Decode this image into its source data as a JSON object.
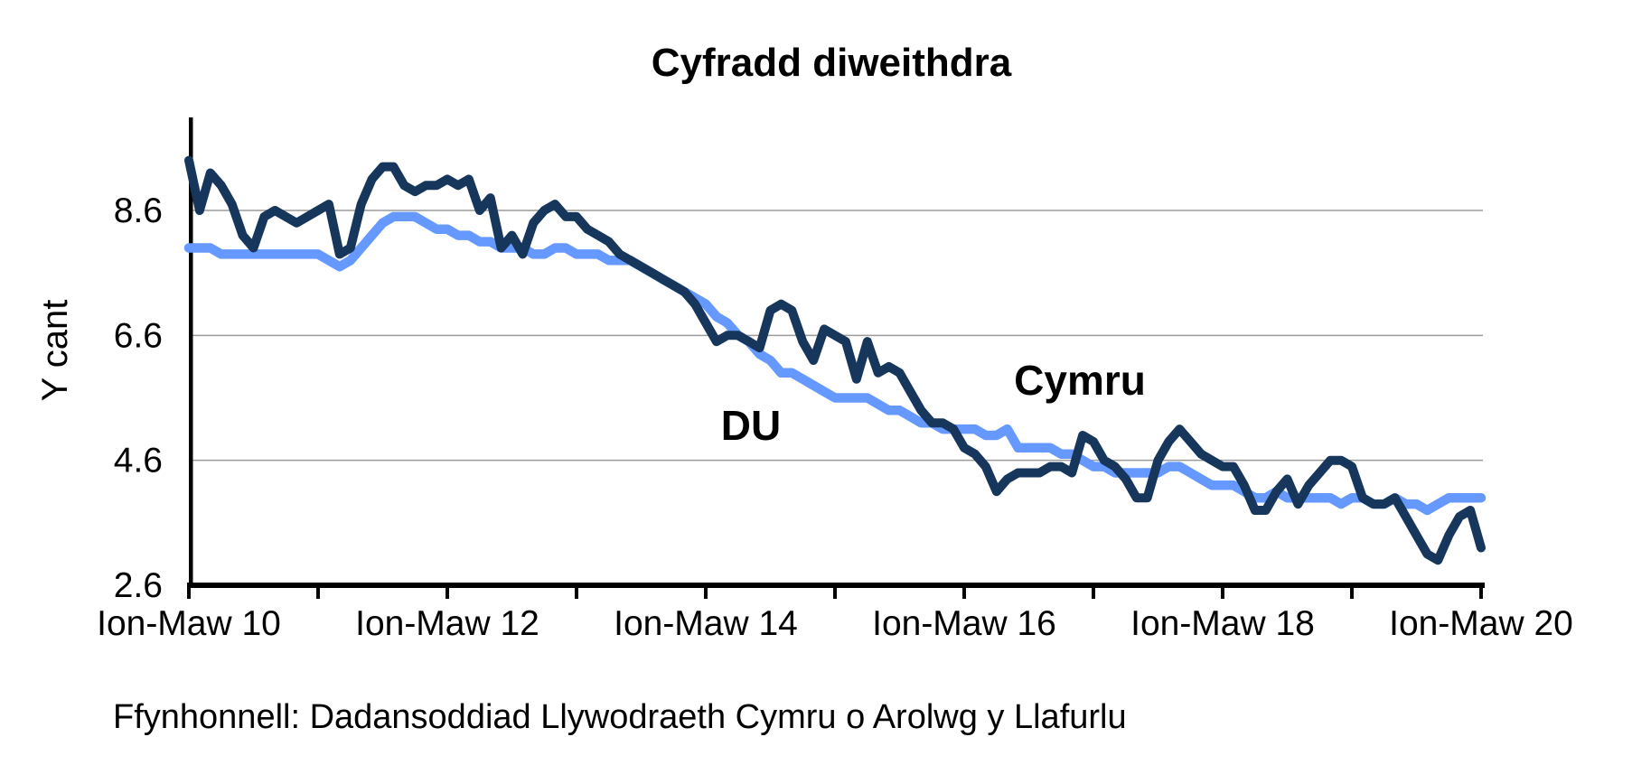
{
  "title": "Cyfradd diweithdra",
  "y_axis": {
    "label": "Y cant"
  },
  "series_labels": {
    "cymru": "Cymru",
    "du": "DU"
  },
  "source": "Ffynhonnell: Dadansoddiad Llywodraeth Cymru o Arolwg y Llafurlu",
  "colors": {
    "cymru": "#16365C",
    "du": "#6699FF",
    "gridline": "#9B9B9B",
    "axis": "#000000"
  },
  "chart_data": {
    "type": "line",
    "title": "Cyfradd diweithdra",
    "ylabel": "Y cant",
    "ylim": [
      2.6,
      10.0
    ],
    "yticks": [
      2.6,
      4.6,
      6.6,
      8.6
    ],
    "grid": "horizontal",
    "legend_position": "inline-annotations",
    "x_unit": "rolling-quarter-monthly",
    "x_range": [
      "Ion-Maw 2010",
      "Ion-Maw 2020"
    ],
    "x_tick_labels": [
      "Ion-Maw 10",
      "Ion-Maw 12",
      "Ion-Maw 14",
      "Ion-Maw 16",
      "Ion-Maw 18",
      "Ion-Maw 20"
    ],
    "series": [
      {
        "name": "DU",
        "color": "#6699FF",
        "values": [
          8.0,
          8.0,
          8.0,
          7.9,
          7.9,
          7.9,
          7.9,
          7.9,
          7.9,
          7.9,
          7.9,
          7.9,
          7.9,
          7.8,
          7.7,
          7.8,
          8.0,
          8.2,
          8.4,
          8.5,
          8.5,
          8.5,
          8.4,
          8.3,
          8.3,
          8.2,
          8.2,
          8.1,
          8.1,
          8.0,
          8.0,
          8.0,
          7.9,
          7.9,
          8.0,
          8.0,
          7.9,
          7.9,
          7.9,
          7.8,
          7.8,
          7.8,
          7.7,
          7.6,
          7.5,
          7.4,
          7.3,
          7.2,
          7.1,
          6.9,
          6.8,
          6.6,
          6.5,
          6.3,
          6.2,
          6.0,
          6.0,
          5.9,
          5.8,
          5.7,
          5.6,
          5.6,
          5.6,
          5.6,
          5.5,
          5.4,
          5.4,
          5.3,
          5.2,
          5.2,
          5.1,
          5.1,
          5.1,
          5.1,
          5.0,
          5.0,
          5.1,
          4.8,
          4.8,
          4.8,
          4.8,
          4.7,
          4.7,
          4.6,
          4.5,
          4.5,
          4.4,
          4.4,
          4.4,
          4.4,
          4.4,
          4.5,
          4.5,
          4.4,
          4.3,
          4.2,
          4.2,
          4.2,
          4.1,
          4.0,
          4.0,
          4.1,
          4.0,
          4.0,
          4.0,
          4.0,
          4.0,
          3.9,
          4.0,
          4.0,
          3.9,
          3.9,
          4.0,
          3.9,
          3.9,
          3.8,
          3.9,
          4.0,
          4.0,
          4.0,
          4.0
        ]
      },
      {
        "name": "Cymru",
        "color": "#16365C",
        "values": [
          9.4,
          8.6,
          9.2,
          9.0,
          8.7,
          8.2,
          8.0,
          8.5,
          8.6,
          8.5,
          8.4,
          8.5,
          8.6,
          8.7,
          7.9,
          8.0,
          8.7,
          9.1,
          9.3,
          9.3,
          9.0,
          8.9,
          9.0,
          9.0,
          9.1,
          9.0,
          9.1,
          8.6,
          8.8,
          8.0,
          8.2,
          7.9,
          8.4,
          8.6,
          8.7,
          8.5,
          8.5,
          8.3,
          8.2,
          8.1,
          7.9,
          7.8,
          7.7,
          7.6,
          7.5,
          7.4,
          7.3,
          7.1,
          6.8,
          6.5,
          6.6,
          6.6,
          6.5,
          6.4,
          7.0,
          7.1,
          7.0,
          6.5,
          6.2,
          6.7,
          6.6,
          6.5,
          5.9,
          6.5,
          6.0,
          6.1,
          6.0,
          5.7,
          5.4,
          5.2,
          5.2,
          5.1,
          4.8,
          4.7,
          4.5,
          4.1,
          4.3,
          4.4,
          4.4,
          4.4,
          4.5,
          4.5,
          4.4,
          5.0,
          4.9,
          4.6,
          4.5,
          4.3,
          4.0,
          4.0,
          4.6,
          4.9,
          5.1,
          4.9,
          4.7,
          4.6,
          4.5,
          4.5,
          4.2,
          3.8,
          3.8,
          4.1,
          4.3,
          3.9,
          4.2,
          4.4,
          4.6,
          4.6,
          4.5,
          4.0,
          3.9,
          3.9,
          4.0,
          3.7,
          3.4,
          3.1,
          3.0,
          3.4,
          3.7,
          3.8,
          3.2
        ]
      }
    ]
  }
}
